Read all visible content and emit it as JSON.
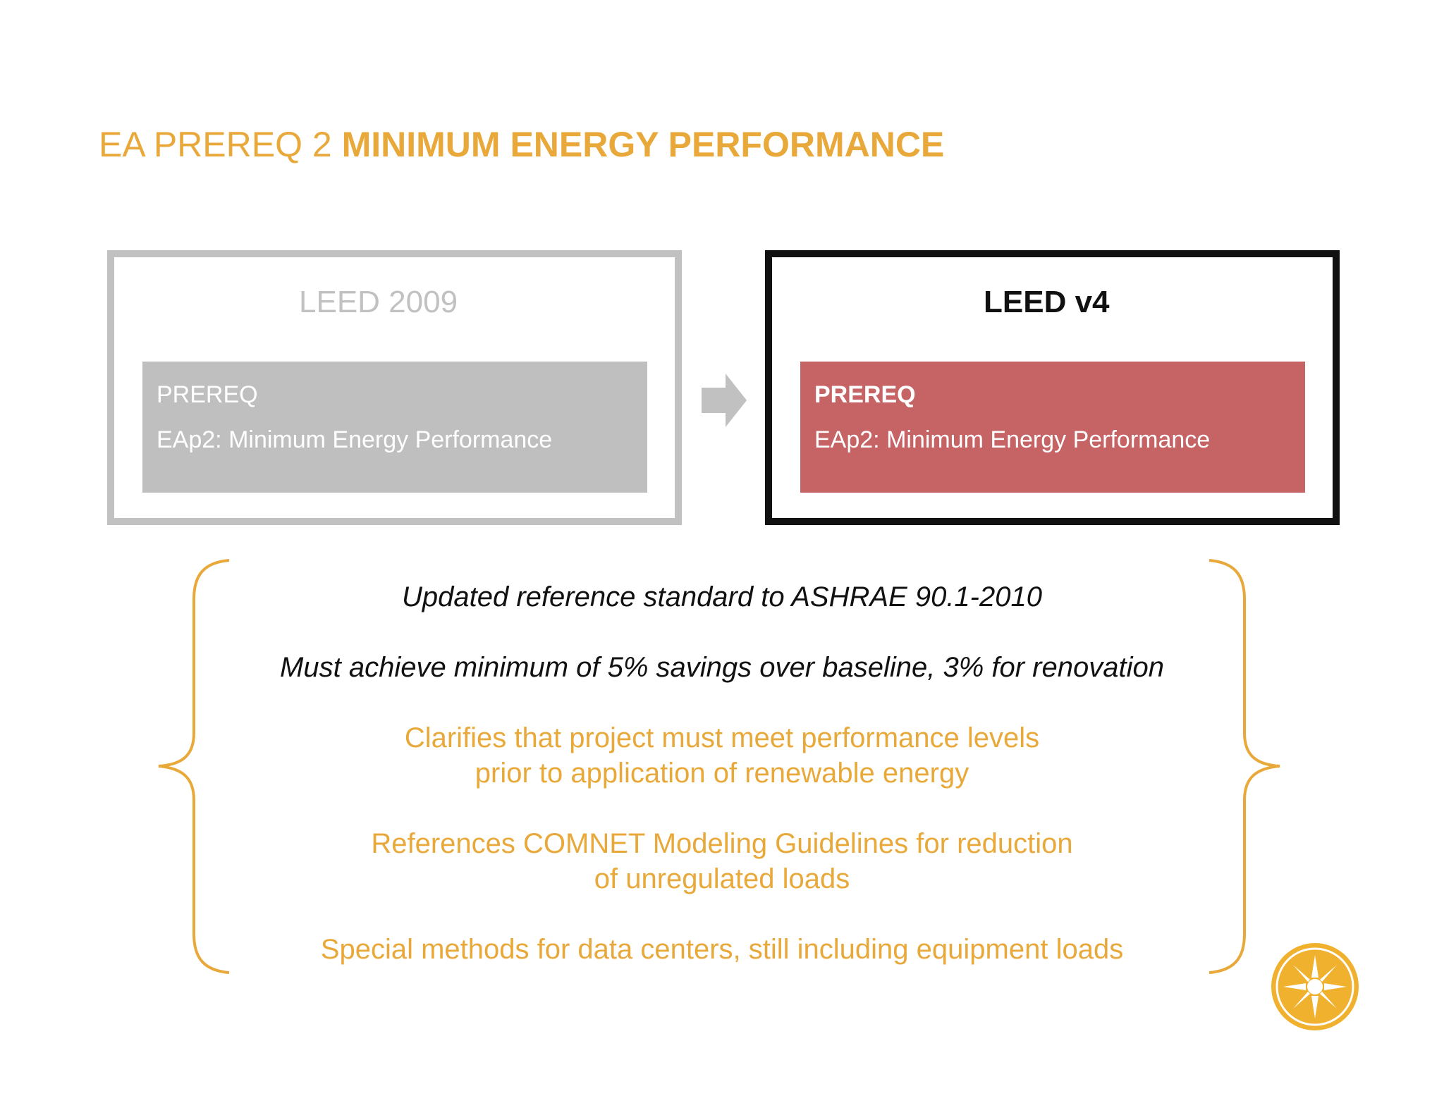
{
  "title": {
    "prefix": "EA PREREQ 2",
    "bold": "MINIMUM ENERGY PERFORMANCE"
  },
  "panels": {
    "old": {
      "heading": "LEED 2009",
      "card_kicker": "PREREQ",
      "card_text": "EAp2: Minimum Energy Performance",
      "border_color": "#c2c1c2",
      "card_color": "#c0bfc0"
    },
    "new": {
      "heading": "LEED v4",
      "card_kicker": "PREREQ",
      "card_text": "EAp2: Minimum Energy Performance",
      "border_color": "#111111",
      "card_color": "#c66364"
    }
  },
  "notes": [
    {
      "lines": [
        "Updated reference standard to ASHRAE 90.1-2010"
      ],
      "style": "dark"
    },
    {
      "lines": [
        "Must achieve minimum of 5% savings over baseline, 3% for renovation"
      ],
      "style": "dark"
    },
    {
      "lines": [
        "Clarifies that project must meet performance levels",
        "prior to application of renewable energy"
      ],
      "style": "gold"
    },
    {
      "lines": [
        "References COMNET Modeling Guidelines for reduction",
        "of unregulated loads"
      ],
      "style": "gold"
    },
    {
      "lines": [
        "Special methods for data centers, still including equipment loads"
      ],
      "style": "gold"
    }
  ],
  "icons": {
    "arrow": "right-arrow-icon",
    "brace_left": "left-curly-brace-icon",
    "brace_right": "right-curly-brace-icon",
    "logo": "sun-logo-icon"
  },
  "colors": {
    "accent_gold": "#e8a93a",
    "logo_fill": "#f0b22e"
  }
}
